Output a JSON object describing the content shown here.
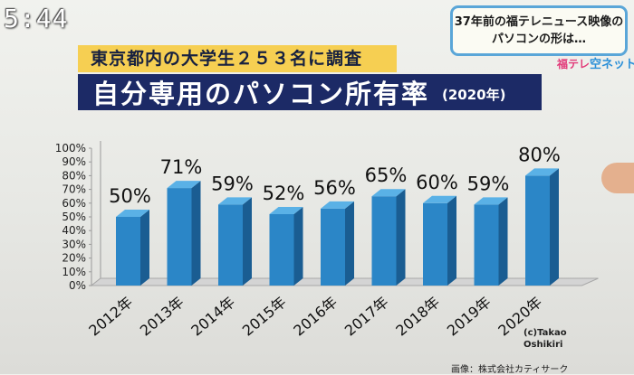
{
  "clock": "5:44",
  "news_box": {
    "line1": "37年前の福テレニュース映像の",
    "line2": "パソコンの形は…"
  },
  "station": {
    "part1": "福テレ",
    "part2": "空ネット"
  },
  "survey_banner": "東京都内の大学生２５３名に調査",
  "title_banner": {
    "main": "自分専用のパソコン所有率",
    "sub": "(2020年)"
  },
  "credit": "(c)Takao\nOshikiri",
  "image_credit": "画像：株式会社カティサーク",
  "colors": {
    "bar_front": "#2b86c7",
    "bar_side": "#1a5d92",
    "bar_top": "#5ab1e6",
    "title_bg": "#1c2a66",
    "survey_bg": "#f6cf52"
  },
  "chart_data": {
    "type": "bar",
    "categories": [
      "2012年",
      "2013年",
      "2014年",
      "2015年",
      "2016年",
      "2017年",
      "2018年",
      "2019年",
      "2020年"
    ],
    "values": [
      50,
      71,
      59,
      52,
      56,
      65,
      60,
      59,
      80
    ],
    "data_labels": [
      "50%",
      "71%",
      "59%",
      "52%",
      "56%",
      "65%",
      "60%",
      "59%",
      "80%"
    ],
    "y_ticks": [
      "0%",
      "10%",
      "20%",
      "30%",
      "40%",
      "50%",
      "60%",
      "70%",
      "80%",
      "90%",
      "100%"
    ],
    "ylim": [
      0,
      100
    ],
    "grid": false,
    "style": "3d"
  }
}
